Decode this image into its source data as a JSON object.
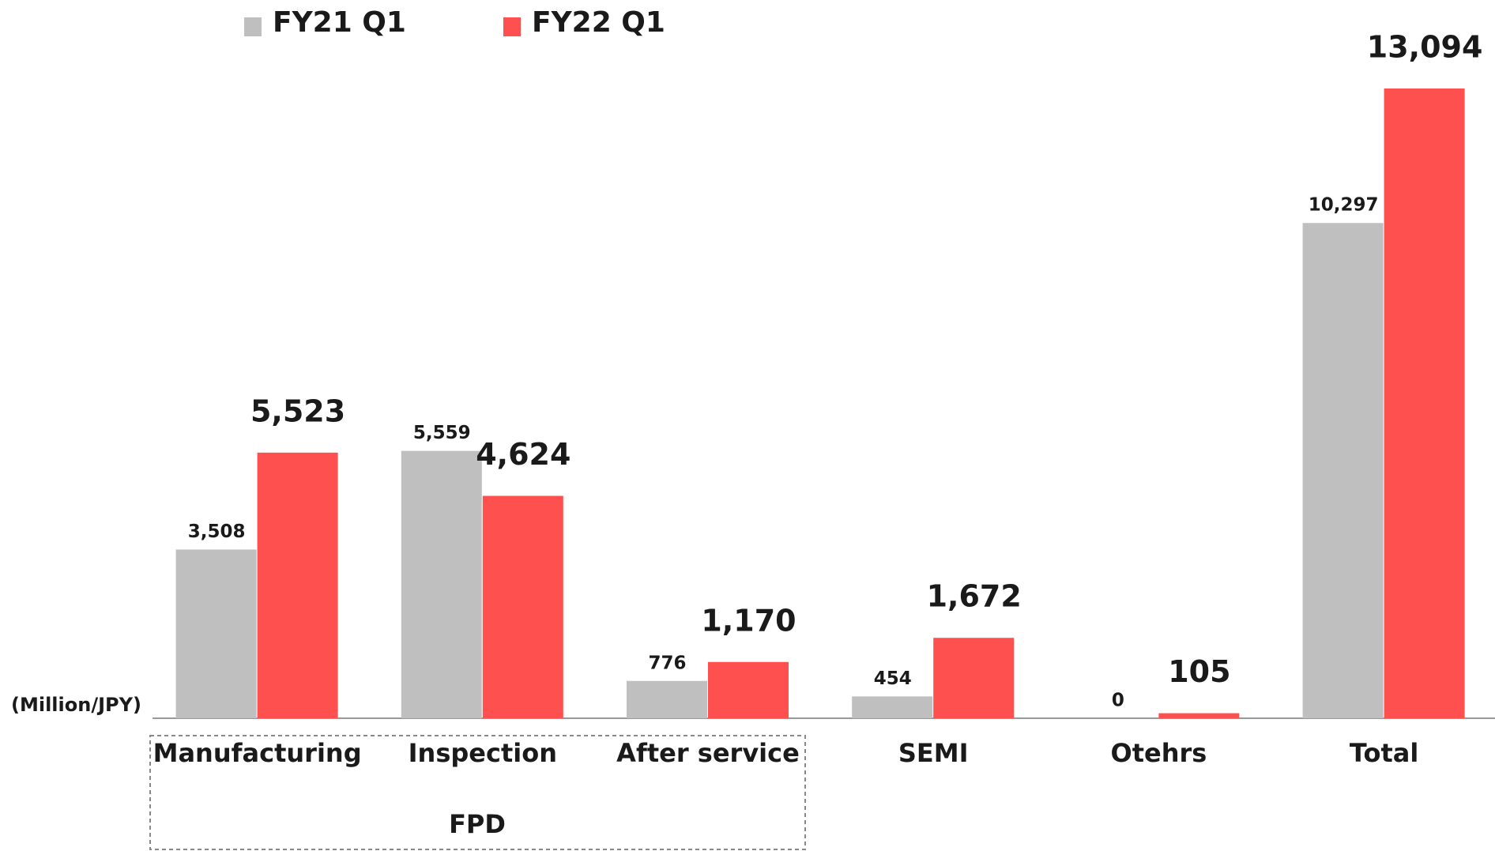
{
  "chart_data": {
    "type": "bar",
    "unit_label": "(Million/JPY)",
    "group_label": "FPD",
    "categories": [
      "Manufacturing",
      "Inspection",
      "After service",
      "SEMI",
      "Otehrs",
      "Total"
    ],
    "series": [
      {
        "name": "FY21 Q1",
        "color": "#bfbfbf",
        "values": [
          3508,
          5559,
          776,
          454,
          0,
          10297
        ],
        "value_labels": [
          "3,508",
          "5,559",
          "776",
          "454",
          "0",
          "10,297"
        ]
      },
      {
        "name": "FY22 Q1",
        "color": "#ff5050",
        "values": [
          5523,
          4624,
          1170,
          1672,
          105,
          13094
        ],
        "value_labels": [
          "5,523",
          "4,624",
          "1,170",
          "1,672",
          "105",
          "13,094"
        ]
      }
    ]
  }
}
